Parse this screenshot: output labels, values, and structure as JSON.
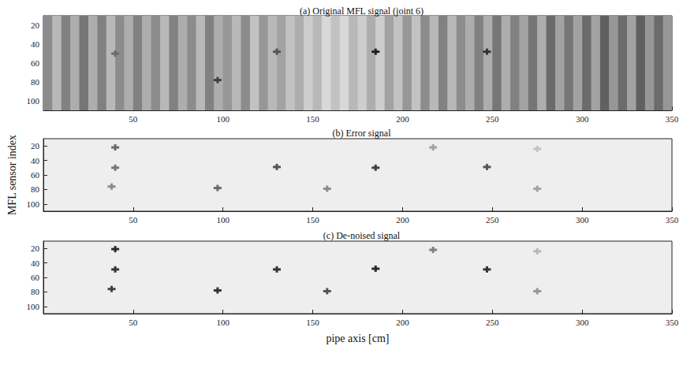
{
  "chart_data": [
    {
      "type": "heatmap",
      "title": "(a) Original MFL signal (joint 6)",
      "xlim": [
        0,
        350
      ],
      "xticks": [
        50,
        100,
        150,
        200,
        250,
        300,
        350
      ],
      "ylim": [
        10,
        110
      ],
      "yticks": [
        20,
        40,
        60,
        80,
        100
      ],
      "zlim": [
        0,
        1
      ],
      "columns": {
        "x": [
          2.5,
          7.5,
          12.5,
          17.5,
          22.5,
          27.5,
          32.5,
          37.5,
          42.5,
          47.5,
          52.5,
          57.5,
          62.5,
          67.5,
          72.5,
          77.5,
          82.5,
          87.5,
          92.5,
          97.5,
          102.5,
          107.5,
          112.5,
          117.5,
          122.5,
          127.5,
          132.5,
          137.5,
          142.5,
          147.5,
          152.5,
          157.5,
          162.5,
          167.5,
          172.5,
          177.5,
          182.5,
          187.5,
          192.5,
          197.5,
          202.5,
          207.5,
          212.5,
          217.5,
          222.5,
          227.5,
          232.5,
          237.5,
          242.5,
          247.5,
          252.5,
          257.5,
          262.5,
          267.5,
          272.5,
          277.5,
          282.5,
          287.5,
          292.5,
          297.5,
          302.5,
          307.5,
          312.5,
          317.5,
          322.5,
          327.5,
          332.5,
          337.5,
          342.5,
          347.5
        ],
        "values": [
          0.45,
          0.25,
          0.5,
          0.3,
          0.55,
          0.3,
          0.5,
          0.25,
          0.45,
          0.3,
          0.5,
          0.3,
          0.45,
          0.25,
          0.5,
          0.3,
          0.45,
          0.25,
          0.5,
          0.3,
          0.4,
          0.25,
          0.45,
          0.2,
          0.4,
          0.25,
          0.35,
          0.2,
          0.3,
          0.15,
          0.25,
          0.1,
          0.2,
          0.1,
          0.25,
          0.15,
          0.3,
          0.15,
          0.35,
          0.2,
          0.4,
          0.2,
          0.45,
          0.25,
          0.5,
          0.25,
          0.45,
          0.3,
          0.5,
          0.3,
          0.55,
          0.3,
          0.5,
          0.35,
          0.55,
          0.3,
          0.6,
          0.35,
          0.55,
          0.35,
          0.6,
          0.35,
          0.65,
          0.4,
          0.6,
          0.35,
          0.65,
          0.4,
          0.6,
          0.4
        ]
      },
      "points": {
        "x": [
          185,
          247,
          97,
          130,
          40
        ],
        "y": [
          48,
          48,
          78,
          48,
          50
        ],
        "values": [
          0.95,
          0.85,
          0.8,
          0.7,
          0.6
        ]
      }
    },
    {
      "type": "heatmap",
      "title": "(b) Error signal",
      "ylabel": "MFL sensor index",
      "xlim": [
        0,
        350
      ],
      "xticks": [
        50,
        100,
        150,
        200,
        250,
        300,
        350
      ],
      "ylim": [
        10,
        110
      ],
      "yticks": [
        20,
        40,
        60,
        80,
        100
      ],
      "zlim": [
        0,
        1
      ],
      "points": {
        "x": [
          40,
          40,
          38,
          97,
          130,
          185,
          247,
          158,
          217,
          275,
          275
        ],
        "y": [
          22,
          50,
          76,
          78,
          49,
          50,
          49,
          79,
          22,
          79,
          24
        ],
        "values": [
          0.6,
          0.55,
          0.45,
          0.6,
          0.7,
          0.8,
          0.7,
          0.45,
          0.35,
          0.35,
          0.2
        ]
      }
    },
    {
      "type": "heatmap",
      "title": "(c) De-noised signal",
      "xlabel": "pipe axis [cm]",
      "xlim": [
        0,
        350
      ],
      "xticks": [
        50,
        100,
        150,
        200,
        250,
        300,
        350
      ],
      "ylim": [
        10,
        110
      ],
      "yticks": [
        20,
        40,
        60,
        80,
        100
      ],
      "zlim": [
        0,
        1
      ],
      "points": {
        "x": [
          40,
          40,
          38,
          97,
          130,
          185,
          247,
          158,
          217,
          275,
          275
        ],
        "y": [
          21,
          49,
          76,
          78,
          49,
          48,
          49,
          79,
          22,
          79,
          24
        ],
        "values": [
          0.9,
          0.85,
          0.8,
          0.85,
          0.85,
          0.9,
          0.85,
          0.7,
          0.5,
          0.4,
          0.25
        ]
      }
    }
  ]
}
